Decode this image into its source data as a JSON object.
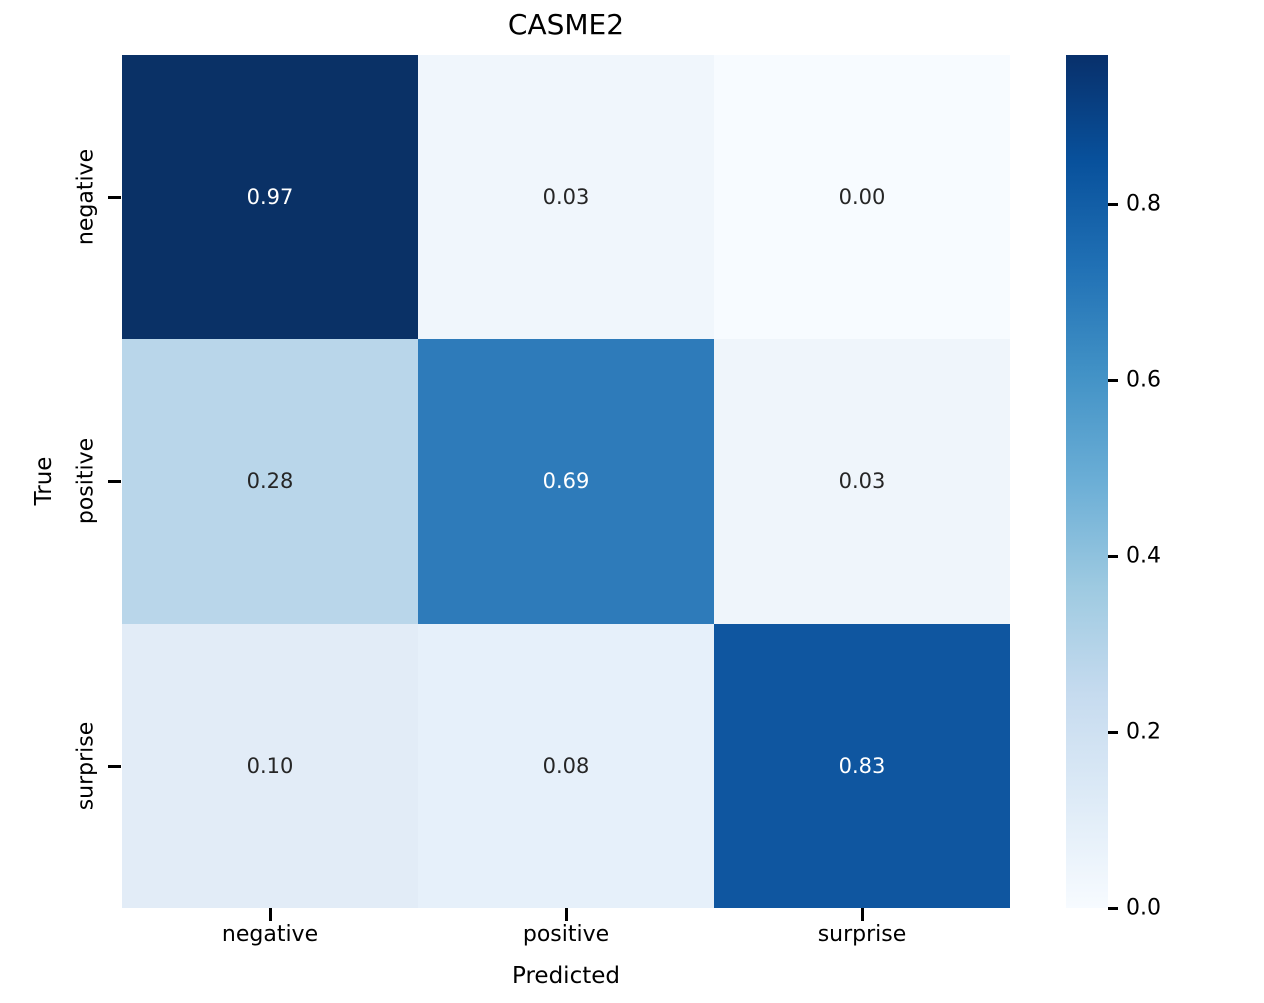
{
  "figure": {
    "background": "#ffffff"
  },
  "chart_data": {
    "type": "heatmap",
    "title": "CASME2",
    "xlabel": "Predicted",
    "ylabel": "True",
    "x_categories": [
      "negative",
      "positive",
      "surprise"
    ],
    "y_categories": [
      "negative",
      "positive",
      "surprise"
    ],
    "matrix": [
      [
        0.97,
        0.03,
        0.0
      ],
      [
        0.28,
        0.69,
        0.03
      ],
      [
        0.1,
        0.08,
        0.83
      ]
    ],
    "cell_labels": [
      [
        "0.97",
        "0.03",
        "0.00"
      ],
      [
        "0.28",
        "0.69",
        "0.03"
      ],
      [
        "0.10",
        "0.08",
        "0.83"
      ]
    ],
    "cell_colors": [
      [
        "#0a3166",
        "#f0f6fc",
        "#f7fbff"
      ],
      [
        "#b9d6ea",
        "#2e7bba",
        "#eff5fb"
      ],
      [
        "#e2ecf7",
        "#e6f0fa",
        "#0f56a0"
      ]
    ],
    "text_colors": [
      [
        "#ffffff",
        "#262626",
        "#262626"
      ],
      [
        "#262626",
        "#ffffff",
        "#262626"
      ],
      [
        "#262626",
        "#262626",
        "#ffffff"
      ]
    ],
    "colormap": "Blues",
    "vmin": 0.0,
    "vmax": 0.97,
    "grid": false,
    "legend_position": "right-colorbar",
    "colorbar_gradient": [
      "#08306b",
      "#08519c",
      "#2171b5",
      "#4292c6",
      "#6baed6",
      "#9ecae1",
      "#c6dbef",
      "#deebf7",
      "#f7fbff"
    ],
    "colorbar_ticks": [
      {
        "value": 0.8,
        "label": "0.8"
      },
      {
        "value": 0.6,
        "label": "0.6"
      },
      {
        "value": 0.4,
        "label": "0.4"
      },
      {
        "value": 0.2,
        "label": "0.2"
      },
      {
        "value": 0.0,
        "label": "0.0"
      }
    ]
  }
}
